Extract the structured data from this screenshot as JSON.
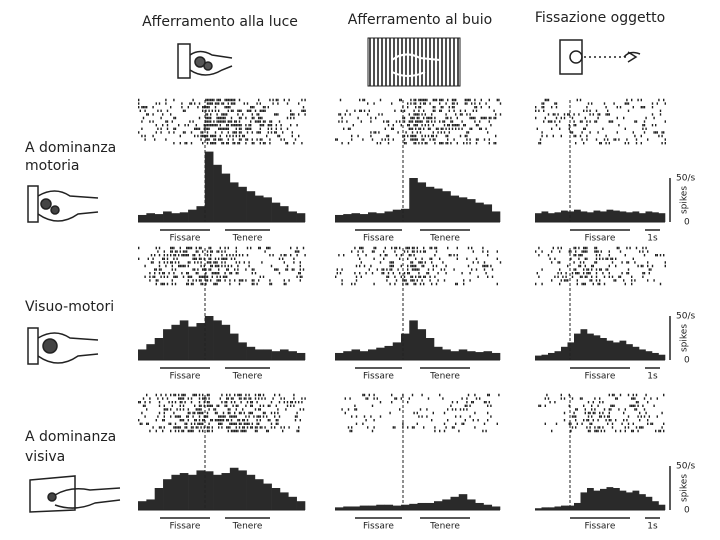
{
  "columns": [
    {
      "title": "Afferramento alla luce",
      "labels": [
        "Fissare",
        "Tenere"
      ]
    },
    {
      "title": "Afferramento al buio",
      "labels": [
        "Fissare",
        "Tenere"
      ]
    },
    {
      "title": "Fissazione oggetto",
      "labels": [
        "Fissare",
        "1s"
      ]
    }
  ],
  "rows": [
    {
      "label": [
        "A dominanza",
        "motoria"
      ],
      "histograms": [
        [
          8,
          10,
          9,
          12,
          10,
          11,
          14,
          18,
          80,
          65,
          55,
          45,
          40,
          35,
          30,
          28,
          22,
          18,
          12,
          10
        ],
        [
          8,
          9,
          10,
          9,
          11,
          10,
          12,
          14,
          15,
          50,
          45,
          40,
          38,
          35,
          30,
          28,
          26,
          22,
          20,
          12
        ],
        [
          10,
          12,
          10,
          11,
          13,
          12,
          14,
          12,
          11,
          13,
          12,
          14,
          13,
          12,
          11,
          12,
          10,
          12,
          11,
          10
        ]
      ]
    },
    {
      "label": [
        "Visuo-motori"
      ],
      "histograms": [
        [
          12,
          18,
          25,
          35,
          40,
          45,
          38,
          42,
          50,
          45,
          40,
          30,
          20,
          15,
          12,
          12,
          10,
          12,
          10,
          8
        ],
        [
          8,
          10,
          12,
          10,
          12,
          14,
          16,
          20,
          30,
          45,
          35,
          25,
          15,
          12,
          10,
          12,
          10,
          9,
          10,
          8
        ],
        [
          5,
          6,
          8,
          10,
          15,
          20,
          30,
          35,
          30,
          28,
          25,
          22,
          20,
          22,
          18,
          15,
          12,
          10,
          8,
          6
        ]
      ]
    },
    {
      "label": [
        "A dominanza",
        "visiva"
      ],
      "histograms": [
        [
          10,
          12,
          25,
          35,
          40,
          42,
          40,
          45,
          44,
          40,
          42,
          48,
          45,
          40,
          35,
          30,
          25,
          20,
          15,
          10
        ],
        [
          3,
          4,
          4,
          5,
          5,
          6,
          6,
          5,
          6,
          7,
          8,
          8,
          10,
          12,
          15,
          18,
          12,
          8,
          6,
          4
        ],
        [
          2,
          3,
          3,
          4,
          5,
          5,
          8,
          20,
          25,
          22,
          24,
          26,
          25,
          22,
          20,
          22,
          18,
          15,
          10,
          6
        ]
      ]
    }
  ],
  "scale": {
    "ticks": [
      0,
      {
        "value": 50,
        "label": "50/s"
      }
    ],
    "unit": "spikes"
  }
}
